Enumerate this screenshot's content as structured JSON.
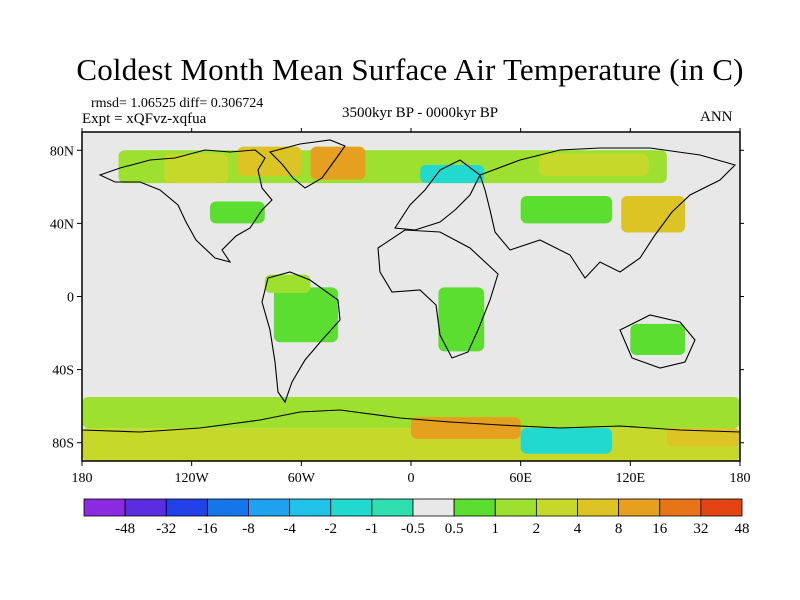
{
  "title": "Coldest Month Mean Surface Air Temperature (in C)",
  "stats": "rmsd= 1.06525  diff= 0.306724",
  "experiment": "Expt = xQFvz-xqfua",
  "period": "3500kyr BP - 0000kyr BP",
  "season": "ANN",
  "axes": {
    "lon_ticks": [
      {
        "lon": -180,
        "label": "180"
      },
      {
        "lon": -120,
        "label": "120W"
      },
      {
        "lon": -60,
        "label": "60W"
      },
      {
        "lon": 0,
        "label": "0"
      },
      {
        "lon": 60,
        "label": "60E"
      },
      {
        "lon": 120,
        "label": "120E"
      },
      {
        "lon": 180,
        "label": "180"
      }
    ],
    "lat_ticks": [
      {
        "lat": 80,
        "label": "80N"
      },
      {
        "lat": 40,
        "label": "40N"
      },
      {
        "lat": 0,
        "label": "0"
      },
      {
        "lat": -40,
        "label": "40S"
      },
      {
        "lat": -80,
        "label": "80S"
      }
    ],
    "lat_range": [
      -90,
      90
    ],
    "lon_range": [
      -180,
      180
    ]
  },
  "legend": {
    "labels": [
      "-48",
      "-32",
      "-16",
      "-8",
      "-4",
      "-2",
      "-1",
      "-0.5",
      "0.5",
      "1",
      "2",
      "4",
      "8",
      "16",
      "32",
      "48"
    ],
    "colors": [
      "#8a2be2",
      "#5a2ee0",
      "#2341e8",
      "#1476e8",
      "#1ea1ee",
      "#20c2e8",
      "#22d9d0",
      "#30dfb0",
      "#e8e8e8",
      "#5cde30",
      "#9ee030",
      "#c6d82a",
      "#dcc424",
      "#e4a01e",
      "#e87418",
      "#e44414"
    ]
  },
  "background_color": "#e8e8e8",
  "regions": [
    {
      "name": "arctic-asia-band",
      "lon": [
        -160,
        140
      ],
      "lat": [
        62,
        80
      ],
      "color": "#9ee030"
    },
    {
      "name": "arctic-canada-warm",
      "lon": [
        -135,
        -100
      ],
      "lat": [
        62,
        78
      ],
      "color": "#c6d82a"
    },
    {
      "name": "arctic-archipelago-warm",
      "lon": [
        -95,
        -60
      ],
      "lat": [
        66,
        82
      ],
      "color": "#dcc424"
    },
    {
      "name": "greenland-warm",
      "lon": [
        -55,
        -25
      ],
      "lat": [
        64,
        82
      ],
      "color": "#e4a01e"
    },
    {
      "name": "scandinavia-cool",
      "lon": [
        5,
        40
      ],
      "lat": [
        62,
        72
      ],
      "color": "#22d9d0"
    },
    {
      "name": "siberia-warm",
      "lon": [
        70,
        130
      ],
      "lat": [
        66,
        78
      ],
      "color": "#c6d82a"
    },
    {
      "name": "eastasia-warm",
      "lon": [
        115,
        150
      ],
      "lat": [
        35,
        55
      ],
      "color": "#dcc424"
    },
    {
      "name": "central-asia",
      "lon": [
        60,
        110
      ],
      "lat": [
        40,
        55
      ],
      "color": "#5cde30"
    },
    {
      "name": "north-america-mid",
      "lon": [
        -110,
        -80
      ],
      "lat": [
        40,
        52
      ],
      "color": "#5cde30"
    },
    {
      "name": "south-america",
      "lon": [
        -75,
        -40
      ],
      "lat": [
        -25,
        5
      ],
      "color": "#5cde30"
    },
    {
      "name": "south-america-north",
      "lon": [
        -80,
        -55
      ],
      "lat": [
        2,
        12
      ],
      "color": "#9ee030"
    },
    {
      "name": "africa-central",
      "lon": [
        15,
        40
      ],
      "lat": [
        -30,
        5
      ],
      "color": "#5cde30"
    },
    {
      "name": "australia",
      "lon": [
        120,
        150
      ],
      "lat": [
        -32,
        -15
      ],
      "color": "#5cde30"
    },
    {
      "name": "southern-ocean-band",
      "lon": [
        -180,
        180
      ],
      "lat": [
        -72,
        -55
      ],
      "color": "#9ee030"
    },
    {
      "name": "antarctica-main",
      "lon": [
        -180,
        180
      ],
      "lat": [
        -90,
        -72
      ],
      "color": "#c6d82a"
    },
    {
      "name": "antarctica-warm-east",
      "lon": [
        0,
        60
      ],
      "lat": [
        -78,
        -66
      ],
      "color": "#e4a01e"
    },
    {
      "name": "antarctica-cool-east",
      "lon": [
        60,
        110
      ],
      "lat": [
        -86,
        -72
      ],
      "color": "#22d9d0"
    },
    {
      "name": "antarctica-warm-ross",
      "lon": [
        140,
        180
      ],
      "lat": [
        -82,
        -72
      ],
      "color": "#dcc424"
    }
  ]
}
